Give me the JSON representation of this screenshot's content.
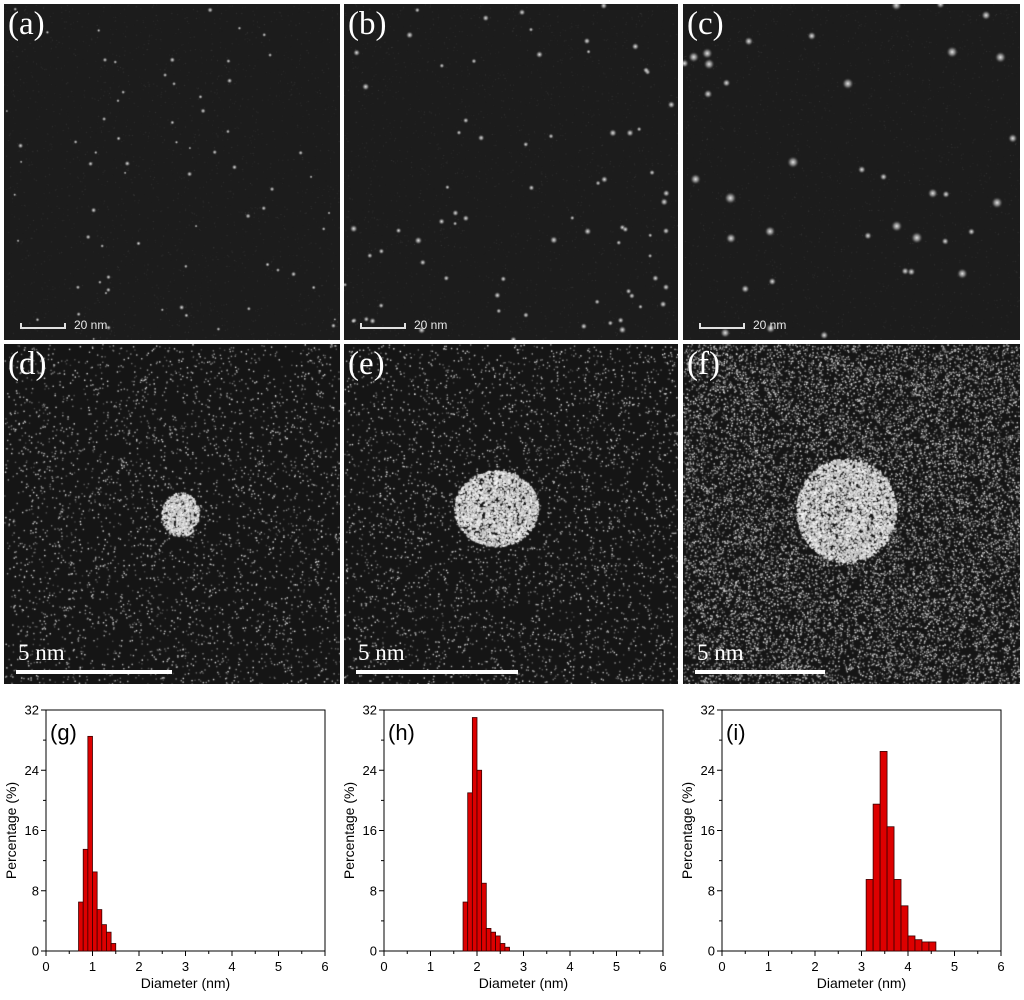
{
  "tem_panels": [
    {
      "label": "(a)",
      "scale_bar_text": "20 nm"
    },
    {
      "label": "(b)",
      "scale_bar_text": "20 nm"
    },
    {
      "label": "(c)",
      "scale_bar_text": "20 nm"
    }
  ],
  "hr_panels": [
    {
      "label": "(d)",
      "scale_bar_text": "5 nm"
    },
    {
      "label": "(e)",
      "scale_bar_text": "5 nm"
    },
    {
      "label": "(f)",
      "scale_bar_text": "5 nm"
    }
  ],
  "colors": {
    "bar_fill": "#dd0000",
    "bar_edge": "#3a0000",
    "panel_bg": "#1b1b1b"
  },
  "chart_data": [
    {
      "type": "bar",
      "panel_label": "(g)",
      "xlabel": "Diameter (nm)",
      "ylabel": "Percentage (%)",
      "xlim": [
        0,
        6
      ],
      "ylim": [
        0,
        32
      ],
      "xticks": [
        "0",
        "1",
        "2",
        "3",
        "4",
        "5",
        "6"
      ],
      "yticks": [
        "0",
        "8",
        "16",
        "24",
        "32"
      ],
      "bin_width": 0.1,
      "bins": [
        {
          "x": 0.75,
          "value": 6.5
        },
        {
          "x": 0.85,
          "value": 13.5
        },
        {
          "x": 0.95,
          "value": 28.5
        },
        {
          "x": 1.05,
          "value": 10.5
        },
        {
          "x": 1.15,
          "value": 5.5
        },
        {
          "x": 1.25,
          "value": 3.5
        },
        {
          "x": 1.35,
          "value": 2.5
        },
        {
          "x": 1.45,
          "value": 1.0
        }
      ]
    },
    {
      "type": "bar",
      "panel_label": "(h)",
      "xlabel": "Diameter (nm)",
      "ylabel": "Percentage (%)",
      "xlim": [
        0,
        6
      ],
      "ylim": [
        0,
        32
      ],
      "xticks": [
        "0",
        "1",
        "2",
        "3",
        "4",
        "5",
        "6"
      ],
      "yticks": [
        "0",
        "8",
        "16",
        "24",
        "32"
      ],
      "bin_width": 0.1,
      "bins": [
        {
          "x": 1.75,
          "value": 6.5
        },
        {
          "x": 1.85,
          "value": 21.0
        },
        {
          "x": 1.95,
          "value": 31.0
        },
        {
          "x": 2.05,
          "value": 24.0
        },
        {
          "x": 2.15,
          "value": 9.0
        },
        {
          "x": 2.25,
          "value": 3.0
        },
        {
          "x": 2.35,
          "value": 2.5
        },
        {
          "x": 2.45,
          "value": 2.0
        },
        {
          "x": 2.55,
          "value": 1.0
        },
        {
          "x": 2.65,
          "value": 0.5
        }
      ]
    },
    {
      "type": "bar",
      "panel_label": "(i)",
      "xlabel": "Diameter (nm)",
      "ylabel": "Percentage (%)",
      "xlim": [
        0,
        6
      ],
      "ylim": [
        0,
        32
      ],
      "xticks": [
        "0",
        "1",
        "2",
        "3",
        "4",
        "5",
        "6"
      ],
      "yticks": [
        "0",
        "8",
        "16",
        "24",
        "32"
      ],
      "bin_width": 0.15,
      "bins": [
        {
          "x": 3.175,
          "value": 9.5
        },
        {
          "x": 3.325,
          "value": 19.5
        },
        {
          "x": 3.475,
          "value": 26.5
        },
        {
          "x": 3.625,
          "value": 16.5
        },
        {
          "x": 3.775,
          "value": 9.5
        },
        {
          "x": 3.925,
          "value": 6.0
        },
        {
          "x": 4.075,
          "value": 2.0
        },
        {
          "x": 4.225,
          "value": 1.5
        },
        {
          "x": 4.375,
          "value": 1.2
        },
        {
          "x": 4.525,
          "value": 1.2
        }
      ]
    }
  ]
}
